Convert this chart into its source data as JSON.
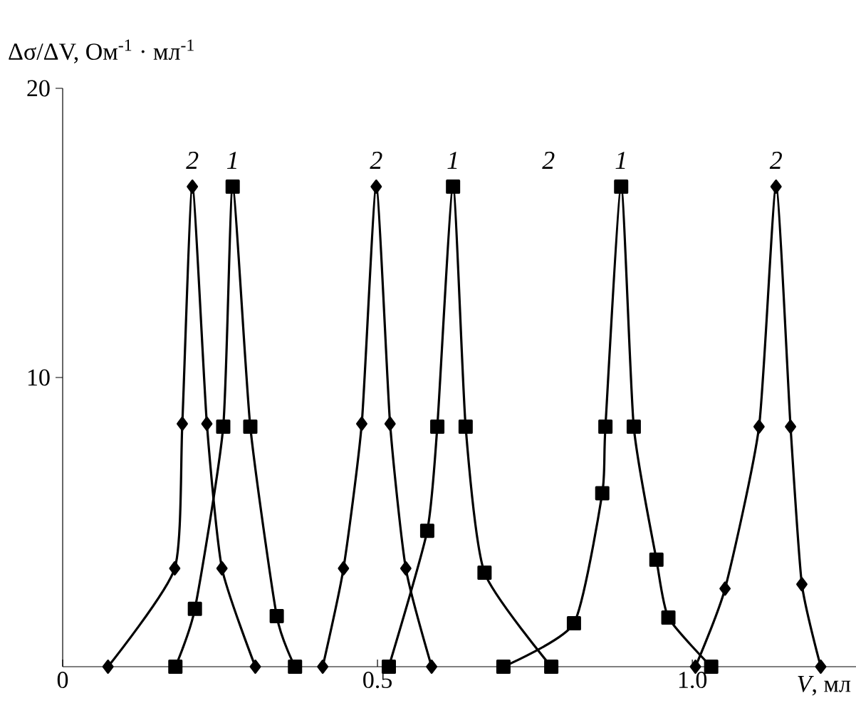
{
  "chart_data": {
    "type": "line",
    "xlabel": "*V*, мл",
    "ylabel": "Δσ/ΔV, Ом$^{-1}$ · мл$^{-1}$",
    "series": [
      {
        "color": "#000000",
        "marker": "square",
        "x": [
          0.179,
          0.21,
          0.255,
          0.27,
          0.298,
          0.34,
          0.369,
          null,
          0.518,
          0.579,
          0.595,
          0.62,
          0.64,
          0.67,
          0.776,
          null,
          0.7,
          0.812,
          0.857,
          0.862,
          0.887,
          0.907,
          0.943,
          0.962,
          1.03
        ],
        "values": [
          0,
          2.0,
          8.3,
          16.6,
          8.3,
          1.75,
          0,
          null,
          0,
          4.7,
          8.3,
          16.6,
          8.3,
          3.25,
          0,
          null,
          0,
          1.5,
          6.0,
          8.3,
          16.6,
          8.3,
          3.7,
          1.7,
          0
        ]
      },
      {
        "color": "#000000",
        "marker": "diamond",
        "x": [
          0.072,
          0.178,
          0.19,
          0.206,
          0.229,
          0.253,
          0.306,
          null,
          0.413,
          0.446,
          0.475,
          0.498,
          0.52,
          0.545,
          0.586,
          null,
          1.005,
          1.052,
          1.106,
          1.133,
          1.156,
          1.174,
          1.204
        ],
        "values": [
          0,
          3.4,
          8.4,
          16.6,
          8.4,
          3.4,
          0,
          null,
          0,
          3.4,
          8.4,
          16.6,
          8.4,
          3.4,
          0,
          null,
          0,
          2.7,
          8.3,
          16.6,
          8.3,
          2.85,
          0
        ]
      }
    ],
    "annotations": [
      {
        "text": "2",
        "x": 0.206,
        "y": 16.6
      },
      {
        "text": "1",
        "x": 0.27,
        "y": 16.6
      },
      {
        "text": "2",
        "x": 0.498,
        "y": 16.6
      },
      {
        "text": "1",
        "x": 0.62,
        "y": 16.6
      },
      "2",
      {
        "text": "1",
        "x": 0.887,
        "y": 16.6
      },
      {
        "text": "2",
        "x": 1.133,
        "y": 16.6
      }
    ],
    "xlim": [
      0,
      1.26
    ],
    "ylim": [
      0,
      20
    ],
    "xticks": [
      0,
      0.5,
      {
        "value": 1.0,
        "label": "1.0"
      }
    ],
    "yticks": [
      10,
      20
    ],
    "line_style": "solid"
  }
}
